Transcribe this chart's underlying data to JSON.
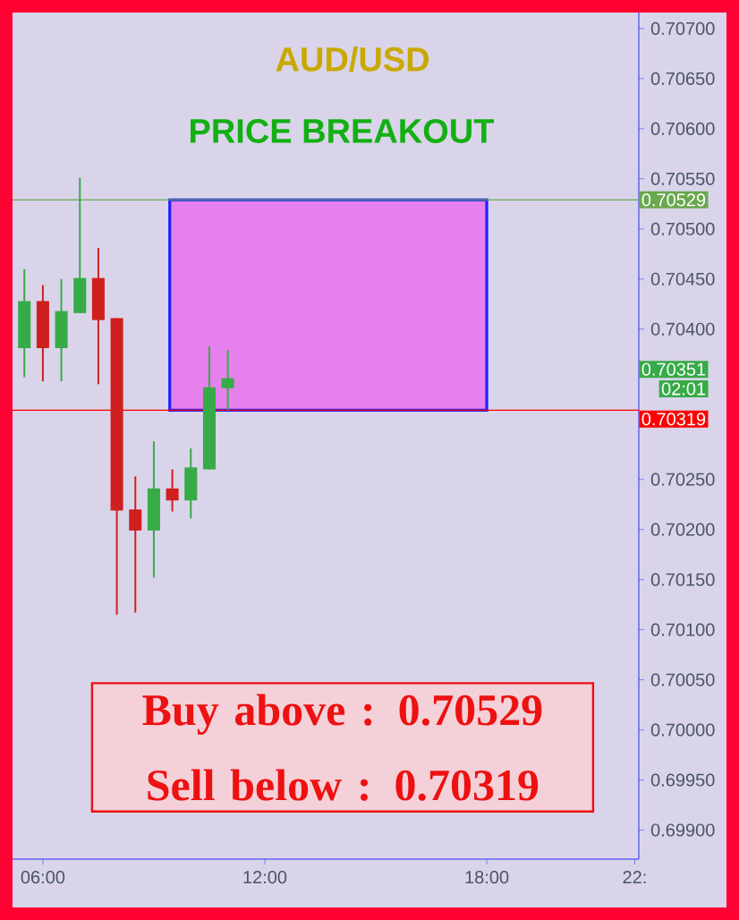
{
  "chart_data": {
    "type": "candlestick",
    "title": "AUD/USD",
    "subtitle": "PRICE BREAKOUT",
    "x": [
      5.5,
      6.0,
      6.5,
      7.0,
      7.5,
      8.0,
      8.5,
      9.0,
      9.5,
      10.0,
      10.5,
      11.0
    ],
    "ohlc": [
      [
        0.70381,
        0.7046,
        0.70352,
        0.70428
      ],
      [
        0.70428,
        0.70444,
        0.70348,
        0.70381
      ],
      [
        0.70381,
        0.7045,
        0.70348,
        0.70418
      ],
      [
        0.70416,
        0.70551,
        0.70416,
        0.70451
      ],
      [
        0.70451,
        0.70481,
        0.70345,
        0.70409
      ],
      [
        0.70411,
        0.70411,
        0.70115,
        0.70219
      ],
      [
        0.7022,
        0.70253,
        0.70117,
        0.70199
      ],
      [
        0.70199,
        0.70288,
        0.70152,
        0.70241
      ],
      [
        0.70241,
        0.7026,
        0.70218,
        0.70229
      ],
      [
        0.70229,
        0.70281,
        0.70211,
        0.70262
      ],
      [
        0.7026,
        0.70383,
        0.7026,
        0.70342
      ],
      [
        0.70341,
        0.70379,
        0.70319,
        0.70351
      ]
    ],
    "colors": [
      "#37ab47",
      "#d01f1f",
      "#37ab47",
      "#37ab47",
      "#d01f1f",
      "#d01f1f",
      "#d01f1f",
      "#37ab47",
      "#d01f1f",
      "#37ab47",
      "#37ab47",
      "#37ab47"
    ],
    "xlim": [
      5.18,
      22.11
    ],
    "ylim": [
      0.69871,
      0.70716
    ],
    "xticks": [
      {
        "value": 6,
        "label": "06:00"
      },
      {
        "value": 12,
        "label": "12:00"
      },
      {
        "value": 18,
        "label": "18:00"
      },
      {
        "value": 22,
        "label": "22:"
      }
    ],
    "yticks": [
      {
        "value": 0.707,
        "label": "0.70700"
      },
      {
        "value": 0.7065,
        "label": "0.70650"
      },
      {
        "value": 0.706,
        "label": "0.70600"
      },
      {
        "value": 0.7055,
        "label": "0.70550"
      },
      {
        "value": 0.705,
        "label": "0.70500"
      },
      {
        "value": 0.7045,
        "label": "0.70450"
      },
      {
        "value": 0.704,
        "label": "0.70400"
      },
      {
        "value": 0.7025,
        "label": "0.70250"
      },
      {
        "value": 0.702,
        "label": "0.70200"
      },
      {
        "value": 0.7015,
        "label": "0.70150"
      },
      {
        "value": 0.701,
        "label": "0.70100"
      },
      {
        "value": 0.7005,
        "label": "0.70050"
      },
      {
        "value": 0.7,
        "label": "0.70000"
      },
      {
        "value": 0.6995,
        "label": "0.69950"
      },
      {
        "value": 0.699,
        "label": "0.69900"
      }
    ],
    "ref_lines": [
      {
        "axis": "y",
        "value": 0.70529,
        "label": "0.70529",
        "color": "#6aa84f"
      },
      {
        "axis": "y",
        "value": 0.70319,
        "label": "0.70319",
        "color": "#ff0000"
      }
    ],
    "bands": [
      {
        "axis": "x",
        "from": 9.43,
        "to": 18.0,
        "color": "#e680ec"
      }
    ],
    "annotations": [
      "0.70351",
      "02:01",
      "Buy above : 0.70529",
      "Sell below : 0.70319"
    ]
  }
}
